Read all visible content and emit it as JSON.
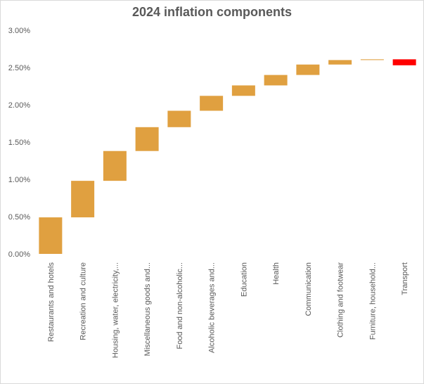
{
  "chart_data": {
    "type": "bar",
    "subtype": "waterfall",
    "title": "2024 inflation components",
    "xlabel": "",
    "ylabel": "",
    "ylim": [
      0,
      3.0
    ],
    "y_ticks": [
      "0.00%",
      "0.50%",
      "1.00%",
      "1.50%",
      "2.00%",
      "2.50%",
      "3.00%"
    ],
    "y_tick_values": [
      0,
      0.5,
      1.0,
      1.5,
      2.0,
      2.5,
      3.0
    ],
    "y_unit": "%",
    "grid": false,
    "legend": "none",
    "categories": [
      "Restaurants and hotels",
      "Recreation and culture",
      "Housing, water, electricity,...",
      "Miscellaneous goods and...",
      "Food and non-alcoholic...",
      "Alcoholic beverages and...",
      "Education",
      "Health",
      "Communication",
      "Clothing and footwear",
      "Furniture, household...",
      "Transport"
    ],
    "values": [
      0.49,
      0.49,
      0.4,
      0.32,
      0.22,
      0.2,
      0.14,
      0.14,
      0.14,
      0.06,
      0.01,
      -0.08
    ],
    "colors": {
      "increase": "#e0a040",
      "decrease": "#ff0000",
      "axis_text": "#595959"
    }
  }
}
